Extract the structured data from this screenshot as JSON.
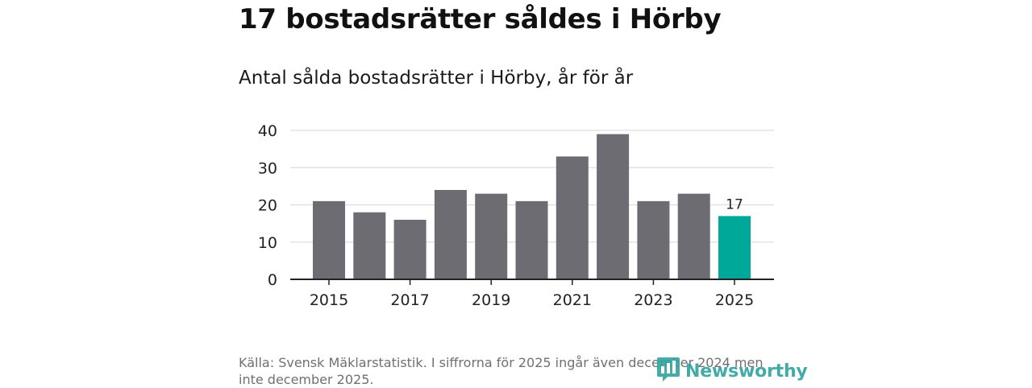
{
  "header": {
    "title": "17 bostadsrätter såldes i Hörby",
    "subtitle": "Antal sålda bostadsrätter i Hörby, år för år"
  },
  "chart_data": {
    "type": "bar",
    "title": "Antal sålda bostadsrätter i Hörby, år för år",
    "xlabel": "",
    "ylabel": "",
    "ylim": [
      0,
      40
    ],
    "yticks": [
      0,
      10,
      20,
      30,
      40
    ],
    "grid": true,
    "categories": [
      "2015",
      "2016",
      "2017",
      "2018",
      "2019",
      "2020",
      "2021",
      "2022",
      "2023",
      "2024",
      "2025"
    ],
    "x_tick_labels": [
      "2015",
      "2017",
      "2019",
      "2021",
      "2023",
      "2025"
    ],
    "values": [
      21,
      18,
      16,
      24,
      23,
      21,
      33,
      39,
      21,
      23,
      17
    ],
    "highlight_index": 10,
    "highlight_label": "17",
    "colors": {
      "bar": "#6d6c72",
      "highlight": "#00a89a",
      "grid": "#dddddd",
      "axis": "#222222",
      "text": "#222222"
    }
  },
  "footer": {
    "source": "Källa: Svensk Mäklarstatistik. I siffrorna för 2025 ingår även december 2024 men inte december 2025."
  },
  "brand": {
    "name": "Newsworthy",
    "icon": "newsworthy-logo-icon",
    "color": "#34a4a0"
  }
}
